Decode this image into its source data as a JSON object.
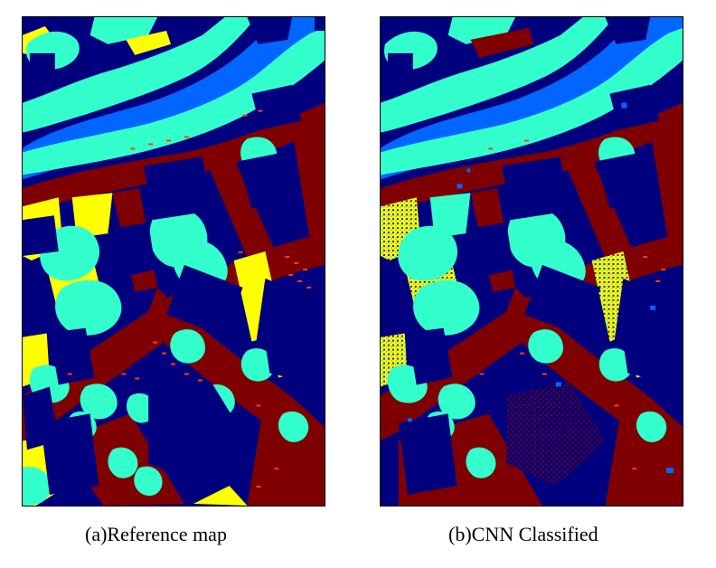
{
  "figure": {
    "panels": [
      {
        "id": "a",
        "caption": "(a)Reference map"
      },
      {
        "id": "b",
        "caption": "(b)CNN Classified"
      }
    ]
  },
  "class_colors": {
    "building": "#00007f",
    "road": "#7f0000",
    "tree": "#33ffcc",
    "low_vegetation": "#ffff00",
    "car": "#ff4000",
    "water": "#0066ff"
  }
}
